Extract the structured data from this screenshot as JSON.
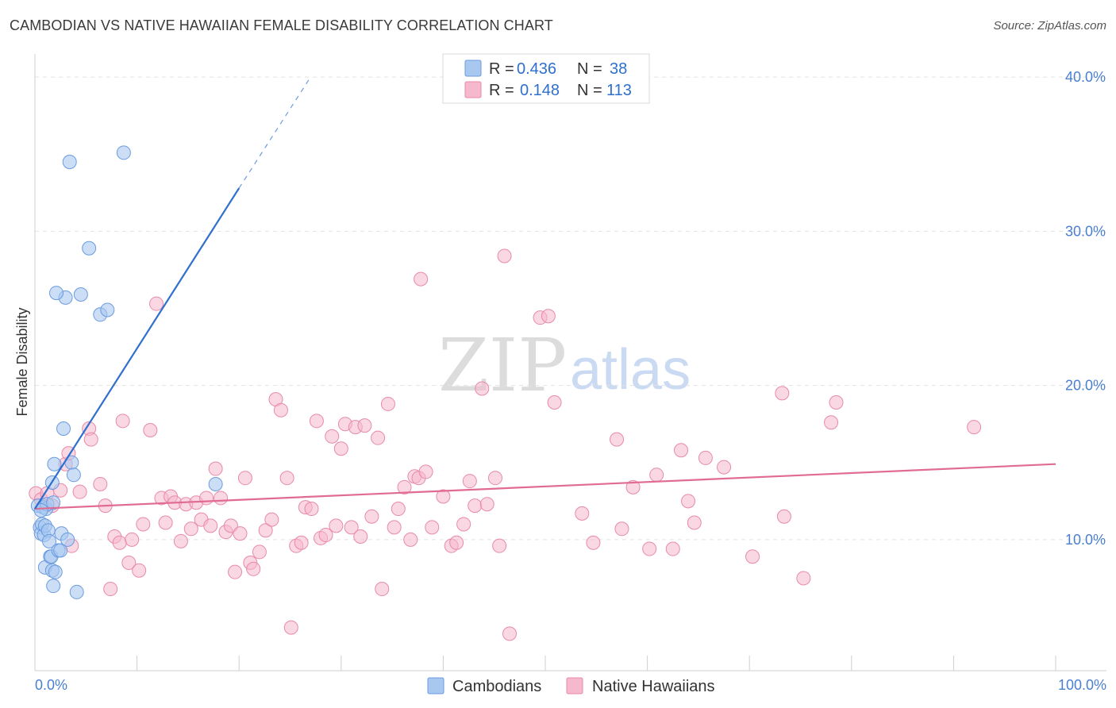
{
  "header": {
    "title": "CAMBODIAN VS NATIVE HAWAIIAN FEMALE DISABILITY CORRELATION CHART",
    "source": "Source: ZipAtlas.com"
  },
  "watermark": {
    "zip": "ZIP",
    "atlas": "atlas"
  },
  "colors": {
    "cambodian_fill": "#a9c8f0",
    "cambodian_stroke": "#6b9be0",
    "cambodian_line": "#2f6fcd",
    "hawaiian_fill": "#f6b8cc",
    "hawaiian_stroke": "#e88aa8",
    "hawaiian_line": "#e06b93",
    "tick_label": "#4a7fd0",
    "grid": "#e2e2e2"
  },
  "legend": {
    "rows": [
      {
        "r_label": "R = ",
        "r_value": "0.436",
        "n_label": "N = ",
        "n_value": "38"
      },
      {
        "r_label": "R = ",
        "r_value": "0.148",
        "n_label": "N = ",
        "n_value": "113"
      }
    ]
  },
  "bottom_legend": [
    "Cambodians",
    "Native Hawaiians"
  ],
  "chart_data": {
    "type": "scatter",
    "title": "CAMBODIAN VS NATIVE HAWAIIAN FEMALE DISABILITY CORRELATION CHART",
    "xlabel": "",
    "ylabel": "Female Disability",
    "xlim": [
      0,
      100
    ],
    "ylim": [
      1.5,
      41.5
    ],
    "x_tick_labels": [
      "0.0%",
      "100.0%"
    ],
    "y_ticks": [
      10,
      20,
      30,
      40
    ],
    "y_tick_labels": [
      "10.0%",
      "20.0%",
      "30.0%",
      "40.0%"
    ],
    "grid": true,
    "legend_position": "top-center",
    "series": [
      {
        "name": "Cambodians",
        "r": 0.436,
        "n": 38,
        "trend": {
          "x": [
            0,
            20
          ],
          "y": [
            12.0,
            32.8
          ],
          "dashed_to": [
            27,
            40.0
          ]
        },
        "points": [
          [
            0.3,
            12.2
          ],
          [
            0.5,
            10.8
          ],
          [
            0.6,
            10.4
          ],
          [
            0.7,
            11.0
          ],
          [
            0.8,
            12.1
          ],
          [
            0.9,
            10.3
          ],
          [
            1.0,
            10.9
          ],
          [
            1.1,
            12.0
          ],
          [
            1.2,
            12.3
          ],
          [
            1.0,
            8.2
          ],
          [
            1.3,
            10.6
          ],
          [
            1.4,
            9.9
          ],
          [
            1.5,
            8.9
          ],
          [
            1.6,
            8.9
          ],
          [
            1.7,
            13.7
          ],
          [
            1.8,
            12.4
          ],
          [
            1.9,
            14.9
          ],
          [
            1.8,
            7.0
          ],
          [
            1.7,
            8.0
          ],
          [
            2.0,
            7.9
          ],
          [
            2.3,
            9.3
          ],
          [
            2.5,
            9.3
          ],
          [
            2.6,
            10.4
          ],
          [
            2.8,
            17.2
          ],
          [
            3.0,
            25.7
          ],
          [
            3.2,
            10.0
          ],
          [
            3.4,
            34.5
          ],
          [
            3.6,
            15.0
          ],
          [
            3.8,
            14.2
          ],
          [
            4.1,
            6.6
          ],
          [
            4.5,
            25.9
          ],
          [
            5.3,
            28.9
          ],
          [
            6.4,
            24.6
          ],
          [
            7.1,
            24.9
          ],
          [
            8.7,
            35.1
          ],
          [
            17.7,
            13.6
          ],
          [
            2.1,
            26.0
          ],
          [
            0.6,
            11.9
          ]
        ]
      },
      {
        "name": "Native Hawaiians",
        "r": 0.148,
        "n": 113,
        "trend": {
          "x": [
            0,
            100
          ],
          "y": [
            12.0,
            14.9
          ]
        },
        "points": [
          [
            0.1,
            13.0
          ],
          [
            0.6,
            12.6
          ],
          [
            1.2,
            13.0
          ],
          [
            1.7,
            12.2
          ],
          [
            2.5,
            13.2
          ],
          [
            3.0,
            14.9
          ],
          [
            3.3,
            15.6
          ],
          [
            3.6,
            9.6
          ],
          [
            4.4,
            13.1
          ],
          [
            5.3,
            17.2
          ],
          [
            5.5,
            16.5
          ],
          [
            6.4,
            13.6
          ],
          [
            6.9,
            12.2
          ],
          [
            7.4,
            6.8
          ],
          [
            7.8,
            10.2
          ],
          [
            8.3,
            9.8
          ],
          [
            8.6,
            17.7
          ],
          [
            9.2,
            8.5
          ],
          [
            9.5,
            10.0
          ],
          [
            10.2,
            8.0
          ],
          [
            10.6,
            11.0
          ],
          [
            11.3,
            17.1
          ],
          [
            11.9,
            25.3
          ],
          [
            12.4,
            12.7
          ],
          [
            12.8,
            11.1
          ],
          [
            13.3,
            12.8
          ],
          [
            13.7,
            12.4
          ],
          [
            14.3,
            9.9
          ],
          [
            14.8,
            12.3
          ],
          [
            15.3,
            10.7
          ],
          [
            15.8,
            12.4
          ],
          [
            16.3,
            11.3
          ],
          [
            16.8,
            12.7
          ],
          [
            17.2,
            10.9
          ],
          [
            17.7,
            14.6
          ],
          [
            18.2,
            12.7
          ],
          [
            18.7,
            10.5
          ],
          [
            19.2,
            10.9
          ],
          [
            19.6,
            7.9
          ],
          [
            20.1,
            10.4
          ],
          [
            20.6,
            14.0
          ],
          [
            21.1,
            8.5
          ],
          [
            21.4,
            8.1
          ],
          [
            22.0,
            9.2
          ],
          [
            22.6,
            10.6
          ],
          [
            23.2,
            11.3
          ],
          [
            23.6,
            19.1
          ],
          [
            24.1,
            18.4
          ],
          [
            24.7,
            14.0
          ],
          [
            25.1,
            4.3
          ],
          [
            25.6,
            9.6
          ],
          [
            26.1,
            9.8
          ],
          [
            26.5,
            12.1
          ],
          [
            27.1,
            12.0
          ],
          [
            27.6,
            17.7
          ],
          [
            28.0,
            10.1
          ],
          [
            28.5,
            10.3
          ],
          [
            29.1,
            16.7
          ],
          [
            29.5,
            10.9
          ],
          [
            30.0,
            15.9
          ],
          [
            30.4,
            17.5
          ],
          [
            31.0,
            10.8
          ],
          [
            31.4,
            17.3
          ],
          [
            31.9,
            10.2
          ],
          [
            32.3,
            17.4
          ],
          [
            33.0,
            11.5
          ],
          [
            33.6,
            16.6
          ],
          [
            34.0,
            6.8
          ],
          [
            34.6,
            18.8
          ],
          [
            35.2,
            10.8
          ],
          [
            35.6,
            12.0
          ],
          [
            36.2,
            13.4
          ],
          [
            36.8,
            10.0
          ],
          [
            37.2,
            14.1
          ],
          [
            37.6,
            14.0
          ],
          [
            38.3,
            14.4
          ],
          [
            38.9,
            10.8
          ],
          [
            40.0,
            12.8
          ],
          [
            40.8,
            9.6
          ],
          [
            41.3,
            9.8
          ],
          [
            42.0,
            11.0
          ],
          [
            42.6,
            13.8
          ],
          [
            43.1,
            12.2
          ],
          [
            43.8,
            19.8
          ],
          [
            44.3,
            12.3
          ],
          [
            45.1,
            14.0
          ],
          [
            45.5,
            9.6
          ],
          [
            46.5,
            3.9
          ],
          [
            46.0,
            28.4
          ],
          [
            37.8,
            26.9
          ],
          [
            49.5,
            24.4
          ],
          [
            50.3,
            24.5
          ],
          [
            50.9,
            18.9
          ],
          [
            53.6,
            11.7
          ],
          [
            54.7,
            9.8
          ],
          [
            57.0,
            16.5
          ],
          [
            57.5,
            10.7
          ],
          [
            58.6,
            13.4
          ],
          [
            60.2,
            9.4
          ],
          [
            60.9,
            14.2
          ],
          [
            62.5,
            9.4
          ],
          [
            63.3,
            15.8
          ],
          [
            64.0,
            12.5
          ],
          [
            64.6,
            11.1
          ],
          [
            65.7,
            15.3
          ],
          [
            67.5,
            14.7
          ],
          [
            70.3,
            8.9
          ],
          [
            73.2,
            19.5
          ],
          [
            73.4,
            11.5
          ],
          [
            75.3,
            7.5
          ],
          [
            78.0,
            17.6
          ],
          [
            78.5,
            18.9
          ],
          [
            92.0,
            17.3
          ]
        ]
      }
    ]
  }
}
